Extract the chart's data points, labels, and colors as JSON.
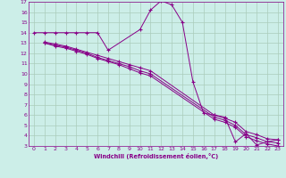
{
  "xlabel": "Windchill (Refroidissement éolien,°C)",
  "bg_color": "#cceee8",
  "line_color": "#880088",
  "grid_color": "#aaccbb",
  "xlim": [
    -0.5,
    23.5
  ],
  "ylim": [
    3,
    17
  ],
  "xticks": [
    0,
    1,
    2,
    3,
    4,
    5,
    6,
    7,
    8,
    9,
    10,
    11,
    12,
    13,
    14,
    15,
    16,
    17,
    18,
    19,
    20,
    21,
    22,
    23
  ],
  "yticks": [
    3,
    4,
    5,
    6,
    7,
    8,
    9,
    10,
    11,
    12,
    13,
    14,
    15,
    16,
    17
  ],
  "lines": [
    {
      "x": [
        0,
        1,
        2,
        3,
        4,
        5,
        6,
        7,
        10,
        11,
        12,
        13,
        14,
        15,
        16,
        17,
        18,
        19,
        20,
        21,
        22,
        23
      ],
      "y": [
        14,
        14,
        14,
        14,
        14,
        14,
        14,
        12.3,
        14.3,
        16.2,
        17.1,
        16.7,
        15.0,
        9.2,
        6.2,
        6.0,
        5.8,
        3.4,
        4.2,
        3.1,
        3.4,
        3.6
      ]
    },
    {
      "x": [
        1,
        2,
        3,
        4,
        5,
        6,
        7,
        8,
        9,
        10,
        11,
        17,
        18,
        19,
        20,
        21,
        22,
        23
      ],
      "y": [
        13.1,
        12.9,
        12.7,
        12.4,
        12.1,
        11.8,
        11.5,
        11.2,
        10.9,
        10.6,
        10.3,
        6.0,
        5.7,
        5.3,
        4.4,
        4.1,
        3.7,
        3.6
      ]
    },
    {
      "x": [
        1,
        2,
        3,
        4,
        5,
        6,
        7,
        8,
        9,
        10,
        11,
        17,
        18,
        19,
        20,
        21,
        22,
        23
      ],
      "y": [
        13.0,
        12.8,
        12.6,
        12.3,
        12.0,
        11.6,
        11.3,
        11.0,
        10.7,
        10.3,
        10.0,
        5.8,
        5.5,
        5.0,
        4.1,
        3.8,
        3.4,
        3.3
      ]
    },
    {
      "x": [
        1,
        2,
        3,
        4,
        5,
        6,
        7,
        8,
        9,
        10,
        11,
        17,
        18,
        19,
        20,
        21,
        22,
        23
      ],
      "y": [
        13.0,
        12.7,
        12.5,
        12.2,
        11.9,
        11.5,
        11.2,
        10.9,
        10.5,
        10.1,
        9.8,
        5.6,
        5.3,
        4.8,
        3.9,
        3.5,
        3.2,
        3.0
      ]
    }
  ]
}
